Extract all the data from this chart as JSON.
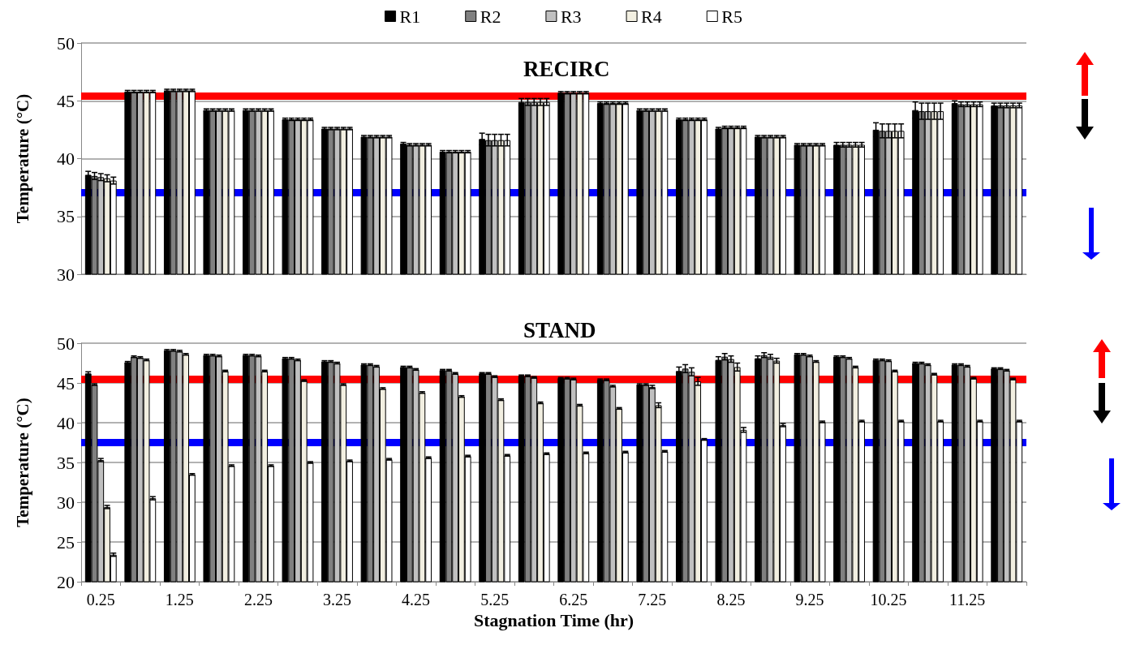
{
  "chart_data": [
    {
      "type": "bar",
      "title": "RECIRC",
      "ylabel": "Temperature (°C)",
      "categories": [
        "0.25",
        null,
        "1.25",
        null,
        "2.25",
        null,
        "3.25",
        null,
        "4.25",
        null,
        "5.25",
        null,
        "6.25",
        null,
        "7.25",
        null,
        "8.25",
        null,
        "9.25",
        null,
        "10.25",
        null,
        "11.25",
        null
      ],
      "series": [
        {
          "name": "R1",
          "color": "#000000",
          "values": [
            38.6,
            45.8,
            45.9,
            44.2,
            44.2,
            43.4,
            42.6,
            41.9,
            41.3,
            40.6,
            41.7,
            44.9,
            45.7,
            44.8,
            44.2,
            43.4,
            42.6,
            41.9,
            41.2,
            41.2,
            42.5,
            44.2,
            44.8,
            44.6
          ],
          "errors": [
            0.3,
            0.1,
            0.1,
            0.1,
            0.1,
            0.1,
            0.1,
            0.1,
            0.1,
            0.1,
            0.5,
            0.3,
            0.1,
            0.1,
            0.1,
            0.1,
            0.1,
            0.1,
            0.1,
            0.2,
            0.6,
            0.7,
            0.2,
            0.2
          ]
        },
        {
          "name": "R2",
          "color": "#808080",
          "values": [
            38.5,
            45.8,
            45.9,
            44.2,
            44.2,
            43.4,
            42.6,
            41.9,
            41.2,
            40.6,
            41.6,
            44.9,
            45.7,
            44.8,
            44.2,
            43.4,
            42.7,
            41.9,
            41.2,
            41.2,
            42.4,
            44.1,
            44.7,
            44.6
          ],
          "errors": [
            0.3,
            0.1,
            0.1,
            0.1,
            0.1,
            0.1,
            0.1,
            0.1,
            0.1,
            0.1,
            0.5,
            0.3,
            0.1,
            0.1,
            0.1,
            0.1,
            0.1,
            0.1,
            0.1,
            0.2,
            0.6,
            0.7,
            0.2,
            0.2
          ]
        },
        {
          "name": "R3",
          "color": "#c0c0c0",
          "values": [
            38.4,
            45.8,
            45.9,
            44.2,
            44.2,
            43.4,
            42.6,
            41.9,
            41.2,
            40.6,
            41.6,
            44.9,
            45.7,
            44.8,
            44.2,
            43.4,
            42.7,
            41.9,
            41.2,
            41.2,
            42.4,
            44.1,
            44.7,
            44.6
          ],
          "errors": [
            0.3,
            0.1,
            0.1,
            0.1,
            0.1,
            0.1,
            0.1,
            0.1,
            0.1,
            0.1,
            0.5,
            0.3,
            0.1,
            0.1,
            0.1,
            0.1,
            0.1,
            0.1,
            0.1,
            0.2,
            0.6,
            0.7,
            0.2,
            0.2
          ]
        },
        {
          "name": "R4",
          "color": "#f2efe1",
          "values": [
            38.3,
            45.8,
            45.9,
            44.2,
            44.2,
            43.4,
            42.6,
            41.9,
            41.2,
            40.6,
            41.6,
            44.9,
            45.7,
            44.8,
            44.2,
            43.4,
            42.7,
            41.9,
            41.2,
            41.2,
            42.4,
            44.1,
            44.7,
            44.6
          ],
          "errors": [
            0.3,
            0.1,
            0.1,
            0.1,
            0.1,
            0.1,
            0.1,
            0.1,
            0.1,
            0.1,
            0.5,
            0.3,
            0.1,
            0.1,
            0.1,
            0.1,
            0.1,
            0.1,
            0.1,
            0.2,
            0.6,
            0.7,
            0.2,
            0.2
          ]
        },
        {
          "name": "R5",
          "color": "#ffffff",
          "values": [
            38.1,
            45.8,
            45.9,
            44.2,
            44.2,
            43.4,
            42.6,
            41.9,
            41.2,
            40.6,
            41.6,
            44.9,
            45.7,
            44.8,
            44.2,
            43.4,
            42.7,
            41.9,
            41.2,
            41.2,
            42.4,
            44.1,
            44.7,
            44.6
          ],
          "errors": [
            0.3,
            0.1,
            0.1,
            0.1,
            0.1,
            0.1,
            0.1,
            0.1,
            0.1,
            0.1,
            0.5,
            0.3,
            0.1,
            0.1,
            0.1,
            0.1,
            0.1,
            0.1,
            0.1,
            0.2,
            0.6,
            0.7,
            0.2,
            0.2
          ]
        }
      ],
      "ylim": [
        30,
        50
      ],
      "yticks": [
        30,
        35,
        40,
        45,
        50
      ],
      "grid": "y",
      "legend": "top",
      "tick_labels": "y",
      "ref_lines": [
        {
          "axis": "y",
          "value": 45.4,
          "color": "#ff0000"
        },
        {
          "axis": "y",
          "value": 37.1,
          "color": "#0000ff"
        }
      ]
    },
    {
      "type": "bar",
      "title": "STAND",
      "xlabel": "Stagnation Time (hr)",
      "ylabel": "Temperature (°C)",
      "categories": [
        "0.25",
        null,
        "1.25",
        null,
        "2.25",
        null,
        "3.25",
        null,
        "4.25",
        null,
        "5.25",
        null,
        "6.25",
        null,
        "7.25",
        null,
        "8.25",
        null,
        "9.25",
        null,
        "10.25",
        null,
        "11.25",
        null
      ],
      "series": [
        {
          "color": "#000000",
          "values": [
            46.2,
            47.6,
            49.1,
            48.5,
            48.5,
            48.1,
            47.7,
            47.3,
            47.0,
            46.6,
            46.2,
            45.9,
            45.6,
            45.4,
            44.8,
            46.5,
            47.9,
            48.1,
            48.6,
            48.3,
            47.9,
            47.5,
            47.3,
            46.8
          ],
          "errors": [
            0.2,
            0.1,
            0.1,
            0.1,
            0.1,
            0.1,
            0.1,
            0.1,
            0.1,
            0.1,
            0.1,
            0.1,
            0.1,
            0.1,
            0.1,
            0.5,
            0.4,
            0.3,
            0.1,
            0.1,
            0.1,
            0.1,
            0.1,
            0.1
          ]
        },
        {
          "color": "#808080",
          "values": [
            44.8,
            48.3,
            49.1,
            48.5,
            48.5,
            48.1,
            47.7,
            47.3,
            47.0,
            46.6,
            46.2,
            45.9,
            45.6,
            45.4,
            44.8,
            46.8,
            48.3,
            48.5,
            48.6,
            48.3,
            47.9,
            47.5,
            47.3,
            46.8
          ],
          "errors": [
            0.1,
            0.1,
            0.1,
            0.1,
            0.1,
            0.1,
            0.1,
            0.1,
            0.1,
            0.1,
            0.1,
            0.1,
            0.1,
            0.1,
            0.1,
            0.5,
            0.4,
            0.3,
            0.1,
            0.1,
            0.1,
            0.1,
            0.1,
            0.1
          ]
        },
        {
          "color": "#c0c0c0",
          "values": [
            35.3,
            48.2,
            49.0,
            48.4,
            48.4,
            47.9,
            47.5,
            47.1,
            46.7,
            46.2,
            45.8,
            45.7,
            45.5,
            44.6,
            44.5,
            46.4,
            48.0,
            48.3,
            48.4,
            48.1,
            47.8,
            47.3,
            47.1,
            46.6
          ],
          "errors": [
            0.2,
            0.1,
            0.1,
            0.1,
            0.1,
            0.1,
            0.1,
            0.1,
            0.1,
            0.1,
            0.1,
            0.1,
            0.1,
            0.1,
            0.2,
            0.5,
            0.4,
            0.3,
            0.1,
            0.1,
            0.1,
            0.1,
            0.1,
            0.1
          ]
        },
        {
          "color": "#f2efe1",
          "values": [
            29.4,
            47.9,
            48.6,
            46.5,
            46.5,
            45.3,
            44.8,
            44.3,
            43.8,
            43.3,
            42.9,
            42.5,
            42.2,
            41.8,
            42.2,
            45.2,
            47.0,
            47.8,
            47.7,
            47.0,
            46.5,
            46.1,
            45.6,
            45.5
          ],
          "errors": [
            0.2,
            0.1,
            0.1,
            0.1,
            0.1,
            0.1,
            0.1,
            0.1,
            0.1,
            0.1,
            0.1,
            0.1,
            0.1,
            0.1,
            0.3,
            0.5,
            0.5,
            0.3,
            0.1,
            0.1,
            0.1,
            0.1,
            0.1,
            0.1
          ]
        },
        {
          "color": "#ffffff",
          "values": [
            23.4,
            30.5,
            33.5,
            34.6,
            34.6,
            35.0,
            35.2,
            35.4,
            35.6,
            35.8,
            35.9,
            36.1,
            36.2,
            36.3,
            36.4,
            37.9,
            39.1,
            39.7,
            40.1,
            40.2,
            40.2,
            40.2,
            40.2,
            40.2
          ],
          "errors": [
            0.2,
            0.2,
            0.1,
            0.1,
            0.1,
            0.1,
            0.1,
            0.1,
            0.1,
            0.1,
            0.1,
            0.1,
            0.1,
            0.1,
            0.1,
            0.1,
            0.3,
            0.2,
            0.1,
            0.1,
            0.1,
            0.1,
            0.1,
            0.1
          ]
        }
      ],
      "ylim": [
        20,
        50
      ],
      "yticks": [
        20,
        25,
        30,
        35,
        40,
        45,
        50
      ],
      "grid": "y",
      "ref_lines": [
        {
          "axis": "y",
          "value": 45.5,
          "color": "#ff0000"
        },
        {
          "axis": "y",
          "value": 37.5,
          "color": "#0000ff"
        }
      ]
    }
  ]
}
